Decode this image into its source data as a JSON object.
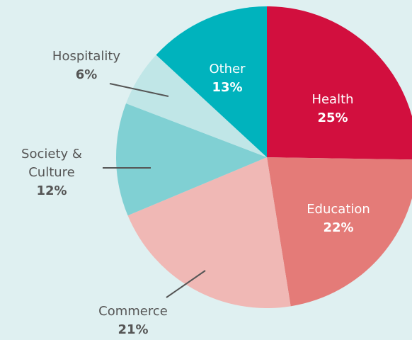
{
  "chart_data": {
    "type": "pie",
    "categories": [
      "Health",
      "Education",
      "Commerce",
      "Society & Culture",
      "Hospitality",
      "Other"
    ],
    "values": [
      25,
      22,
      21,
      12,
      6,
      13
    ],
    "value_labels": [
      "25%",
      "22%",
      "21%",
      "12%",
      "6%",
      "13%"
    ],
    "colors": [
      "#d20f3e",
      "#e47b78",
      "#f0b8b5",
      "#80d0d3",
      "#c0e6e7",
      "#00b3bd"
    ]
  }
}
